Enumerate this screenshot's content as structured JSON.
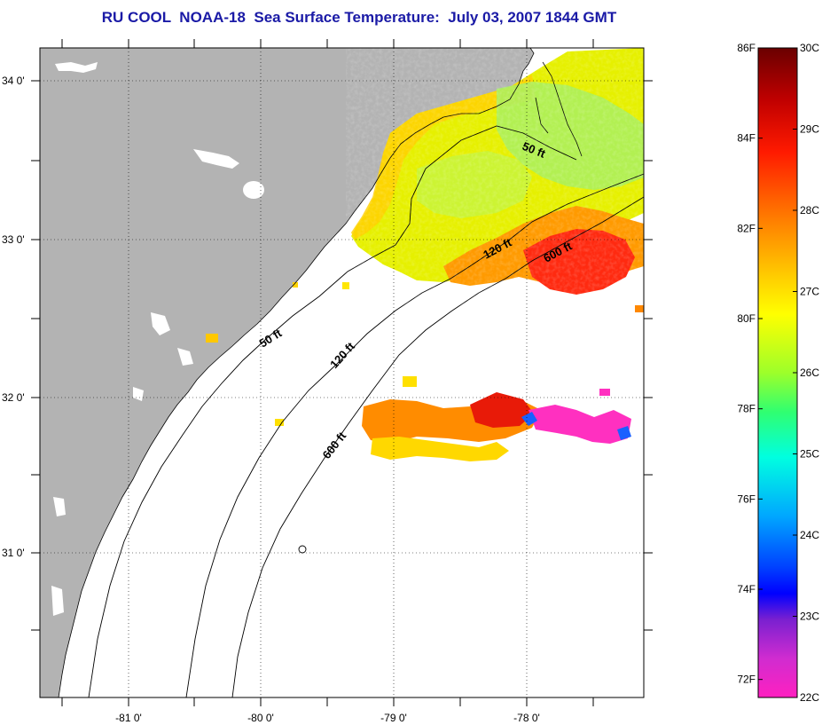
{
  "title": "RU COOL  NOAA-18  Sea Surface Temperature:  July 03, 2007 1844 GMT",
  "map": {
    "lon_labels": [
      "-81 0'",
      "-80 0'",
      "-79 0'",
      "-78 0'"
    ],
    "lat_labels": [
      "34 0'",
      "33 0'",
      "32 0'",
      "31 0'"
    ],
    "contours": [
      {
        "label": "50 ft",
        "name": "contour-50ft-north"
      },
      {
        "label": "120 ft",
        "name": "contour-120ft-north"
      },
      {
        "label": "600 ft",
        "name": "contour-600ft-north"
      },
      {
        "label": "50 ft",
        "name": "contour-50ft-south"
      },
      {
        "label": "120 ft",
        "name": "contour-120ft-south"
      },
      {
        "label": "600 ft",
        "name": "contour-600ft-south"
      }
    ],
    "colors": {
      "land": "#b3b3b3",
      "ocean_nodata": "#ffffff",
      "grid": "#000000"
    }
  },
  "colorbar": {
    "celsius": [
      "30C",
      "29C",
      "28C",
      "27C",
      "26C",
      "25C",
      "24C",
      "23C",
      "22C"
    ],
    "fahrenheit": [
      "86F",
      "84F",
      "82F",
      "80F",
      "78F",
      "76F",
      "74F",
      "72F"
    ],
    "range_c": [
      22,
      30
    ],
    "range_f": [
      72,
      86
    ]
  }
}
